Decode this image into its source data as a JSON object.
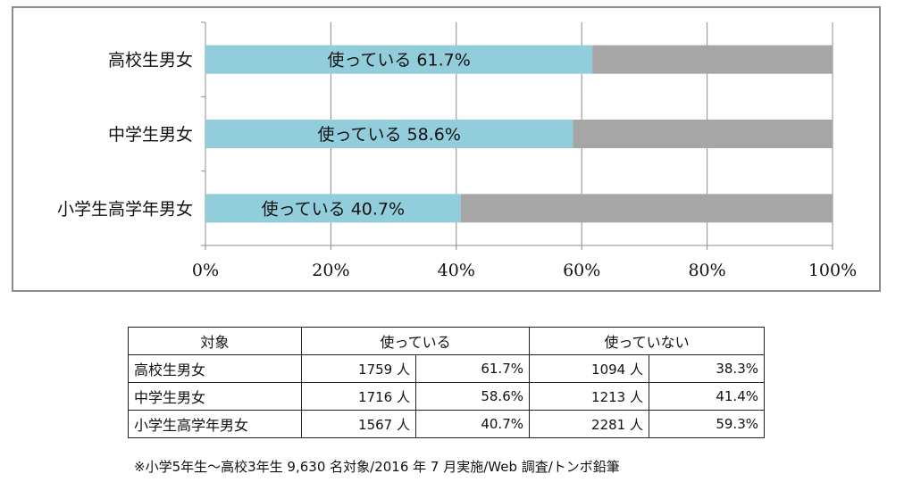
{
  "chart_data": {
    "type": "bar",
    "orientation": "horizontal",
    "stacked": true,
    "categories": [
      "高校生男女",
      "中学生男女",
      "小学生高学年男女"
    ],
    "series": [
      {
        "values": [
          61.7,
          58.6,
          40.7
        ],
        "color": "#92cddc",
        "labels": [
          "使っている 61.7%",
          "使っている 58.6%",
          "使っている 40.7%"
        ]
      },
      {
        "values": [
          38.3,
          41.4,
          59.3
        ],
        "color": "#a6a6a6"
      }
    ],
    "xlim": [
      0,
      100
    ],
    "xticks": [
      "0%",
      "20%",
      "40%",
      "60%",
      "80%",
      "100%"
    ],
    "grid": true,
    "legend": "none"
  },
  "table": {
    "headers": [
      "対象",
      "使っている",
      "使っていない"
    ],
    "rows": [
      {
        "label": "高校生男女",
        "used_count": "1759 人",
        "used_pct": "61.7%",
        "unused_count": "1094 人",
        "unused_pct": "38.3%"
      },
      {
        "label": "中学生男女",
        "used_count": "1716 人",
        "used_pct": "58.6%",
        "unused_count": "1213 人",
        "unused_pct": "41.4%"
      },
      {
        "label": "小学生高学年男女",
        "used_count": "1567 人",
        "used_pct": "40.7%",
        "unused_count": "2281 人",
        "unused_pct": "59.3%"
      }
    ]
  },
  "footnote": "※小学5年生～高校3年生 9,630 名対象/2016 年 7 月実施/Web 調査/トンボ鉛筆"
}
